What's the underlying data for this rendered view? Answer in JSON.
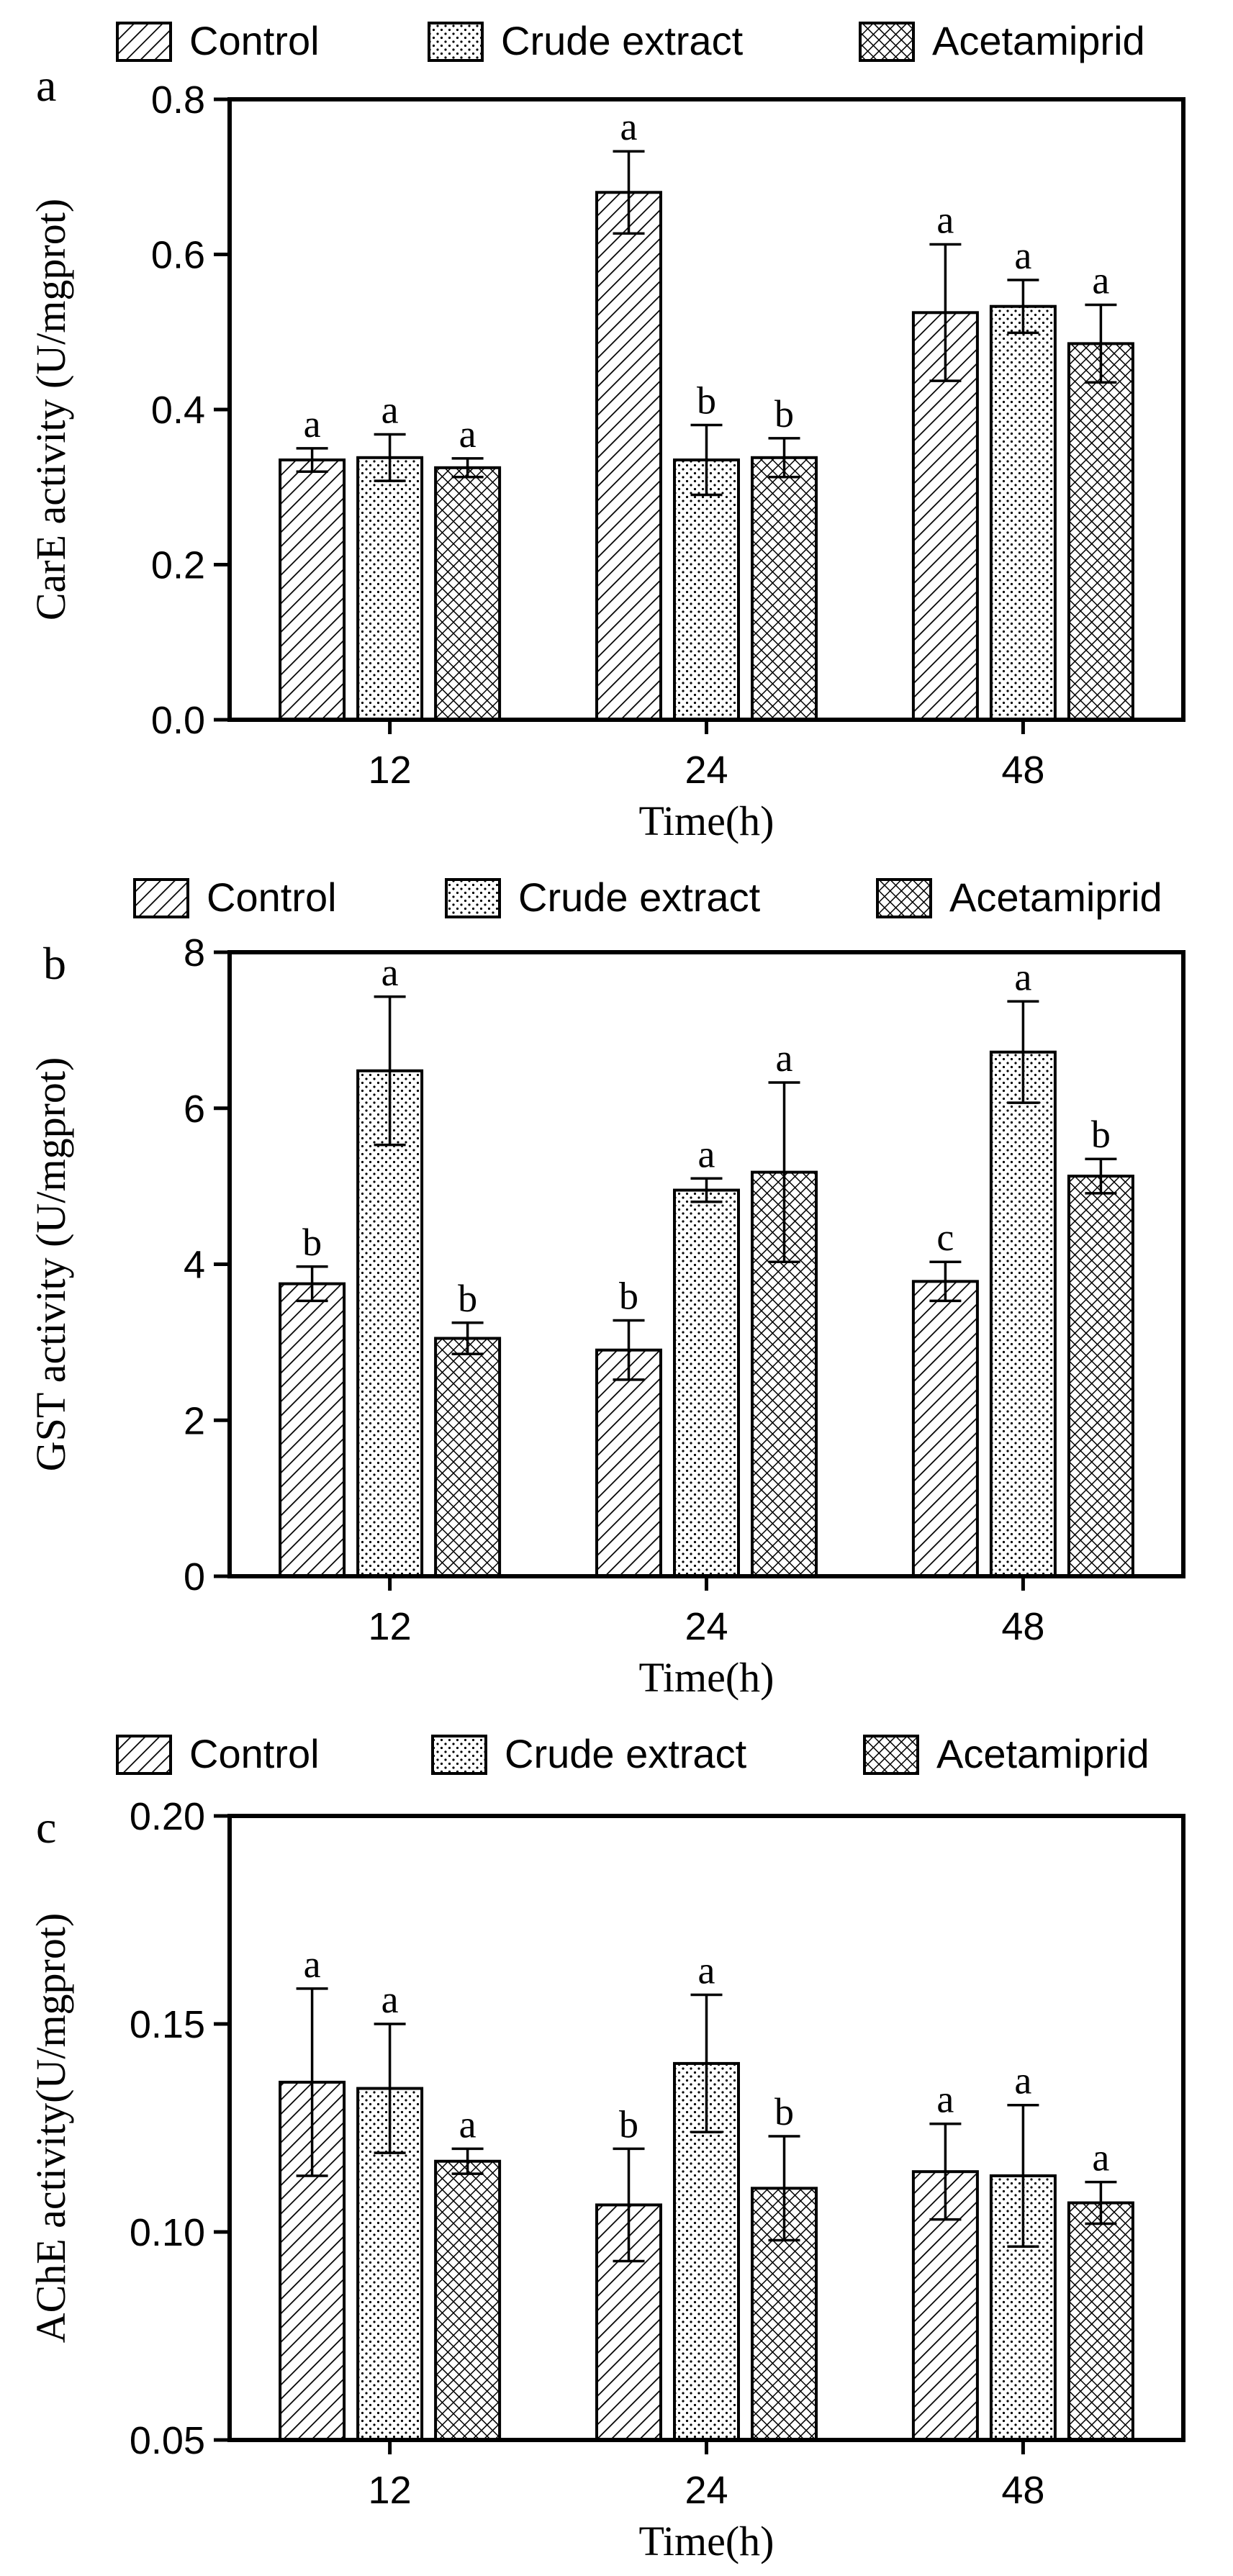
{
  "chart_data": [
    {
      "panel_label": "a",
      "type": "bar",
      "title": "",
      "xlabel": "Time(h)",
      "ylabel": "CarE activity (U/mgprot)",
      "ylim": [
        0,
        0.8
      ],
      "yticks": [
        "0.0",
        "0.2",
        "0.4",
        "0.6",
        "0.8"
      ],
      "categories": [
        "12",
        "24",
        "48"
      ],
      "series": [
        {
          "name": "Control",
          "pattern": "diagonal",
          "values": [
            0.335,
            0.68,
            0.525
          ],
          "errors": [
            0.015,
            0.053,
            0.088
          ],
          "letters": [
            "a",
            "a",
            "a"
          ]
        },
        {
          "name": "Crude extract",
          "pattern": "dots",
          "values": [
            0.338,
            0.335,
            0.533
          ],
          "errors": [
            0.03,
            0.045,
            0.034
          ],
          "letters": [
            "a",
            "b",
            "a"
          ]
        },
        {
          "name": "Acetamiprid",
          "pattern": "crosshatch",
          "values": [
            0.325,
            0.338,
            0.485
          ],
          "errors": [
            0.012,
            0.025,
            0.05
          ],
          "letters": [
            "a",
            "b",
            "a"
          ]
        }
      ],
      "legend_position": "top",
      "grid": false
    },
    {
      "panel_label": "b",
      "type": "bar",
      "title": "",
      "xlabel": "Time(h)",
      "ylabel": "GST activity (U/mgprot)",
      "ylim": [
        0,
        8
      ],
      "yticks": [
        "0",
        "2",
        "4",
        "6",
        "8"
      ],
      "categories": [
        "12",
        "24",
        "48"
      ],
      "series": [
        {
          "name": "Control",
          "pattern": "diagonal",
          "values": [
            3.75,
            2.9,
            3.78
          ],
          "errors": [
            0.22,
            0.38,
            0.25
          ],
          "letters": [
            "b",
            "b",
            "c"
          ]
        },
        {
          "name": "Crude extract",
          "pattern": "dots",
          "values": [
            6.48,
            4.95,
            6.72
          ],
          "errors": [
            0.95,
            0.15,
            0.65
          ],
          "letters": [
            "a",
            "a",
            "a"
          ]
        },
        {
          "name": "Acetamiprid",
          "pattern": "crosshatch",
          "values": [
            3.05,
            5.18,
            5.13
          ],
          "errors": [
            0.2,
            1.15,
            0.22
          ],
          "letters": [
            "b",
            "a",
            "b"
          ]
        }
      ],
      "legend_position": "top",
      "grid": false
    },
    {
      "panel_label": "c",
      "type": "bar",
      "title": "",
      "xlabel": "Time(h)",
      "ylabel": "AChE activity(U/mgprot)",
      "ylim": [
        0.05,
        0.2
      ],
      "yticks": [
        "0.05",
        "0.10",
        "0.15",
        "0.20"
      ],
      "categories": [
        "12",
        "24",
        "48"
      ],
      "series": [
        {
          "name": "Control",
          "pattern": "diagonal",
          "values": [
            0.136,
            0.1065,
            0.1145
          ],
          "errors": [
            0.0225,
            0.0135,
            0.0115
          ],
          "letters": [
            "a",
            "b",
            "a"
          ]
        },
        {
          "name": "Crude extract",
          "pattern": "dots",
          "values": [
            0.1345,
            0.1405,
            0.1135
          ],
          "errors": [
            0.0155,
            0.0165,
            0.017
          ],
          "letters": [
            "a",
            "a",
            "a"
          ]
        },
        {
          "name": "Acetamiprid",
          "pattern": "crosshatch",
          "values": [
            0.117,
            0.1105,
            0.107
          ],
          "errors": [
            0.003,
            0.0125,
            0.005
          ],
          "letters": [
            "a",
            "b",
            "a"
          ]
        }
      ],
      "legend_position": "top",
      "grid": false
    }
  ]
}
